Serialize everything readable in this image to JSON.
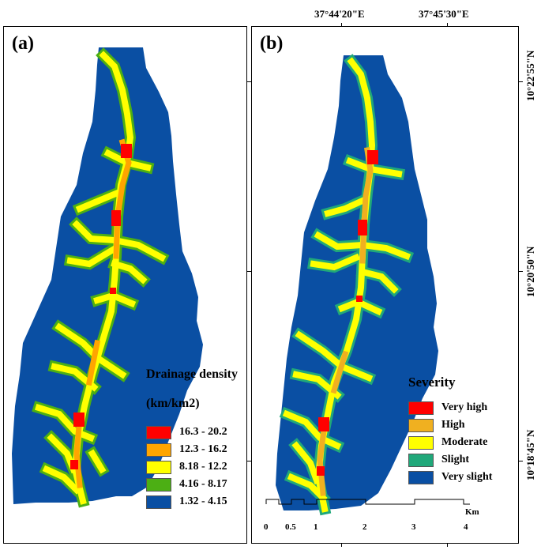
{
  "panels": {
    "a": {
      "label": "(a)"
    },
    "b": {
      "label": "(b)"
    }
  },
  "coordinates": {
    "longitudes": [
      "37°44'20\"E",
      "37°45'30\"E"
    ],
    "latitudes": [
      "10°22'55\"N",
      "10°20'50\"N",
      "10°18'45\"N"
    ]
  },
  "legend_a": {
    "title_line1": "Drainage density",
    "title_line2": "(km/km2)",
    "classes": [
      {
        "label": "16.3 - 20.2",
        "color": "#ff0000"
      },
      {
        "label": "12.3 - 16.2",
        "color": "#ffa500"
      },
      {
        "label": "8.18 - 12.2",
        "color": "#ffff00"
      },
      {
        "label": "4.16 - 8.17",
        "color": "#4caf14"
      },
      {
        "label": "1.32 - 4.15",
        "color": "#0a4fa3"
      }
    ]
  },
  "legend_b": {
    "title": "Severity",
    "classes": [
      {
        "label": "Very high",
        "color": "#ff0000"
      },
      {
        "label": "High",
        "color": "#f0b020"
      },
      {
        "label": "Moderate",
        "color": "#ffff00"
      },
      {
        "label": "Slight",
        "color": "#20a87a"
      },
      {
        "label": "Very slight",
        "color": "#0a4fa3"
      }
    ]
  },
  "scale_bar": {
    "labels": [
      "0",
      "0.5",
      "1",
      "2",
      "3",
      "4"
    ],
    "unit": "Km"
  }
}
